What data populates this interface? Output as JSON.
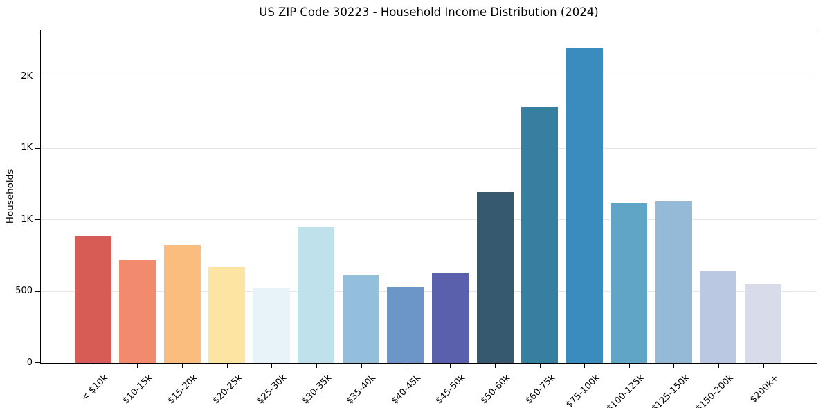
{
  "chart_data": {
    "type": "bar",
    "title": "US ZIP Code 30223 - Household Income Distribution (2024)",
    "xlabel": "",
    "ylabel": "Households",
    "categories": [
      "< $10k",
      "$10-15k",
      "$15-20k",
      "$20-25k",
      "$25-30k",
      "$30-35k",
      "$35-40k",
      "$40-45k",
      "$45-50k",
      "$50-60k",
      "$60-75k",
      "$75-100k",
      "$100-125k",
      "$125-150k",
      "$150-200k",
      "$200k+"
    ],
    "values": [
      890,
      721,
      829,
      672,
      521,
      952,
      615,
      534,
      629,
      1196,
      1790,
      2200,
      1119,
      1133,
      644,
      553
    ],
    "bar_colors": [
      "#d65c55",
      "#f28a6d",
      "#fbbd7d",
      "#fde4a2",
      "#e7f3f8",
      "#bee1ec",
      "#93bedc",
      "#6c95c8",
      "#5a60ab",
      "#36596f",
      "#377fa0",
      "#3a8cbe",
      "#60a5c5",
      "#95bad8",
      "#bac9e1",
      "#d8dbe9"
    ],
    "yticks": [
      {
        "value": 0,
        "label": "0"
      },
      {
        "value": 500,
        "label": "500"
      },
      {
        "value": 1000,
        "label": "1K"
      },
      {
        "value": 1500,
        "label": "1K"
      },
      {
        "value": 2000,
        "label": "2K"
      }
    ],
    "ylim": [
      0,
      2322
    ],
    "grid": "horizontal",
    "gridline_color": "#e7e7e7",
    "spine_color": "#000000",
    "text_color": "#000000",
    "background_color": "#ffffff",
    "legend": "none"
  }
}
